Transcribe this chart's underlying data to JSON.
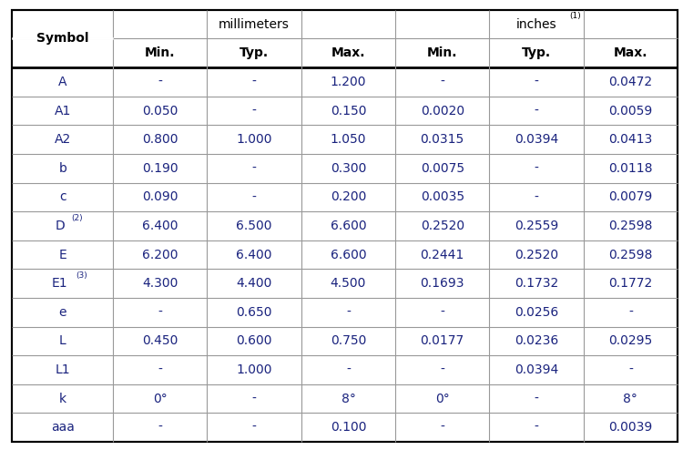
{
  "mm_header": "millimeters",
  "inch_header": "inches",
  "inch_superscript": "(1)",
  "sub_headers": [
    "Min.",
    "Typ.",
    "Max.",
    "Min.",
    "Typ.",
    "Max."
  ],
  "rows": [
    [
      "A",
      "-",
      "-",
      "1.200",
      "-",
      "-",
      "0.0472"
    ],
    [
      "A1",
      "0.050",
      "-",
      "0.150",
      "0.0020",
      "-",
      "0.0059"
    ],
    [
      "A2",
      "0.800",
      "1.000",
      "1.050",
      "0.0315",
      "0.0394",
      "0.0413"
    ],
    [
      "b",
      "0.190",
      "-",
      "0.300",
      "0.0075",
      "-",
      "0.0118"
    ],
    [
      "c",
      "0.090",
      "-",
      "0.200",
      "0.0035",
      "-",
      "0.0079"
    ],
    [
      "D",
      "6.400",
      "6.500",
      "6.600",
      "0.2520",
      "0.2559",
      "0.2598"
    ],
    [
      "E",
      "6.200",
      "6.400",
      "6.600",
      "0.2441",
      "0.2520",
      "0.2598"
    ],
    [
      "E1",
      "4.300",
      "4.400",
      "4.500",
      "0.1693",
      "0.1732",
      "0.1772"
    ],
    [
      "e",
      "-",
      "0.650",
      "-",
      "-",
      "0.0256",
      "-"
    ],
    [
      "L",
      "0.450",
      "0.600",
      "0.750",
      "0.0177",
      "0.0236",
      "0.0295"
    ],
    [
      "L1",
      "-",
      "1.000",
      "-",
      "-",
      "0.0394",
      "-"
    ],
    [
      "k",
      "0°",
      "-",
      "8°",
      "0°",
      "-",
      "8°"
    ],
    [
      "aaa",
      "-",
      "-",
      "0.100",
      "-",
      "-",
      "0.0039"
    ]
  ],
  "symbol_superscripts": {
    "D": "(2)",
    "E1": "(3)"
  },
  "bg_color": "#ffffff",
  "line_color": "#999999",
  "thick_line_color": "#000000",
  "text_color": "#1a237e",
  "header_text_color": "#000000",
  "col_widths_norm": [
    1.5,
    1.4,
    1.4,
    1.4,
    1.4,
    1.4,
    1.4
  ],
  "figsize": [
    7.5,
    4.94
  ],
  "dpi": 100
}
